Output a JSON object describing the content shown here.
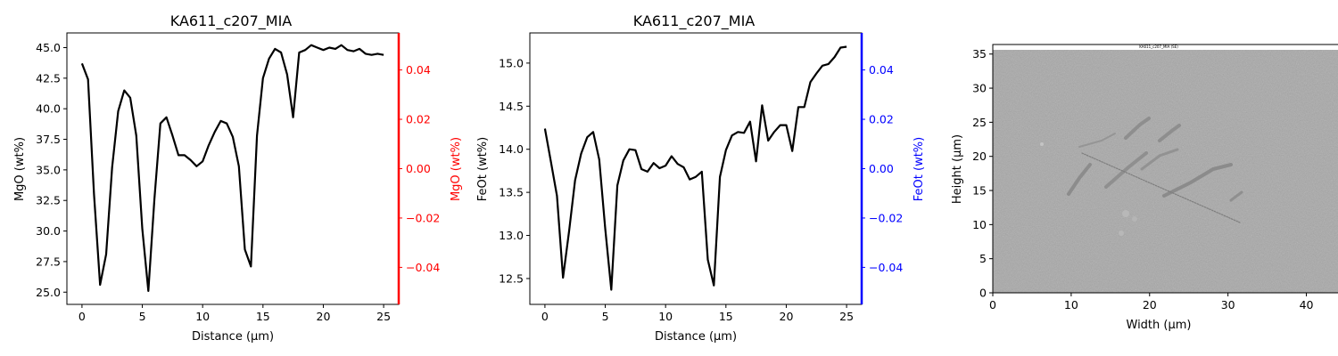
{
  "chart_data": [
    {
      "type": "line",
      "title": "KA611_c207_MIA",
      "xlabel": "Distance (µm)",
      "ylabel": "MgO (wt%)",
      "y2label": "MgO (wt%)",
      "xlim": [
        -1.25,
        26.25
      ],
      "ylim": [
        24.0,
        46.2
      ],
      "y2lim": [
        -0.055,
        0.055
      ],
      "xticks": [
        0,
        5,
        10,
        15,
        20,
        25
      ],
      "yticks": [
        25.0,
        27.5,
        30.0,
        32.5,
        35.0,
        37.5,
        40.0,
        42.5,
        45.0
      ],
      "y2ticks": [
        -0.04,
        -0.02,
        0.0,
        0.02,
        0.04
      ],
      "right_axis_color": "#ff0000",
      "line_color": "#000000",
      "series": [
        {
          "x": [
            0,
            0.5,
            1,
            1.5,
            2,
            2.5,
            3,
            3.5,
            4,
            4.5,
            5,
            5.5,
            6,
            6.5,
            7,
            7.5,
            8,
            8.5,
            9,
            9.5,
            10,
            10.5,
            11,
            11.5,
            12,
            12.5,
            13,
            13.5,
            14,
            14.5,
            15,
            15.5,
            16,
            16.5,
            17,
            17.5,
            18,
            18.5,
            19,
            19.5,
            20,
            20.5,
            21,
            21.5,
            22,
            22.5,
            23,
            23.5,
            24,
            24.5,
            25
          ],
          "y": [
            43.7,
            42.4,
            33.0,
            25.6,
            28.1,
            35.2,
            39.8,
            41.5,
            40.9,
            37.8,
            30.2,
            25.1,
            32.6,
            38.8,
            39.3,
            37.8,
            36.2,
            36.2,
            35.8,
            35.3,
            35.7,
            37.0,
            38.1,
            39.0,
            38.8,
            37.7,
            35.3,
            28.5,
            27.1,
            37.8,
            42.5,
            44.1,
            44.9,
            44.6,
            42.8,
            39.3,
            44.6,
            44.8,
            45.2,
            45.0,
            44.8,
            45.0,
            44.9,
            45.2,
            44.8,
            44.7,
            44.9,
            44.5,
            44.4,
            44.5,
            44.4
          ]
        }
      ]
    },
    {
      "type": "line",
      "title": "KA611_c207_MIA",
      "xlabel": "Distance (µm)",
      "ylabel": "FeOt (wt%)",
      "y2label": "FeOt (wt%)",
      "xlim": [
        -1.25,
        26.25
      ],
      "ylim": [
        12.2,
        15.35
      ],
      "y2lim": [
        -0.055,
        0.055
      ],
      "xticks": [
        0,
        5,
        10,
        15,
        20,
        25
      ],
      "yticks": [
        12.5,
        13.0,
        13.5,
        14.0,
        14.5,
        15.0
      ],
      "y2ticks": [
        -0.04,
        -0.02,
        0.0,
        0.02,
        0.04
      ],
      "right_axis_color": "#0000ff",
      "line_color": "#000000",
      "series": [
        {
          "x": [
            0,
            0.5,
            1,
            1.5,
            2,
            2.5,
            3,
            3.5,
            4,
            4.5,
            5,
            5.5,
            6,
            6.5,
            7,
            7.5,
            8,
            8.5,
            9,
            9.5,
            10,
            10.5,
            11,
            11.5,
            12,
            12.5,
            13,
            13.5,
            14,
            14.5,
            15,
            15.5,
            16,
            16.5,
            17,
            17.5,
            18,
            18.5,
            19,
            19.5,
            20,
            20.5,
            21,
            21.5,
            22,
            22.5,
            23,
            23.5,
            24,
            24.5,
            25
          ],
          "y": [
            14.24,
            13.85,
            13.46,
            12.51,
            13.05,
            13.64,
            13.95,
            14.14,
            14.2,
            13.88,
            13.08,
            12.37,
            13.58,
            13.87,
            14.0,
            13.99,
            13.77,
            13.74,
            13.84,
            13.78,
            13.81,
            13.92,
            13.83,
            13.79,
            13.65,
            13.68,
            13.74,
            12.72,
            12.42,
            13.68,
            13.99,
            14.16,
            14.2,
            14.19,
            14.32,
            13.86,
            14.51,
            14.1,
            14.2,
            14.28,
            14.28,
            13.98,
            14.49,
            14.49,
            14.78,
            14.88,
            14.97,
            14.99,
            15.07,
            15.18,
            15.19
          ]
        }
      ]
    },
    {
      "type": "image",
      "title": "",
      "xlabel": "Width (µm)",
      "ylabel": "Height (µm)",
      "xlim": [
        0,
        48.7
      ],
      "ylim": [
        0,
        36.4
      ],
      "xticks": [
        0,
        10,
        20,
        30,
        40
      ],
      "yticks": [
        0,
        5,
        10,
        15,
        20,
        25,
        30,
        35
      ],
      "image_caption": "KA611_c207_MIA (SE)",
      "image_color": "#a8a8a8"
    }
  ]
}
